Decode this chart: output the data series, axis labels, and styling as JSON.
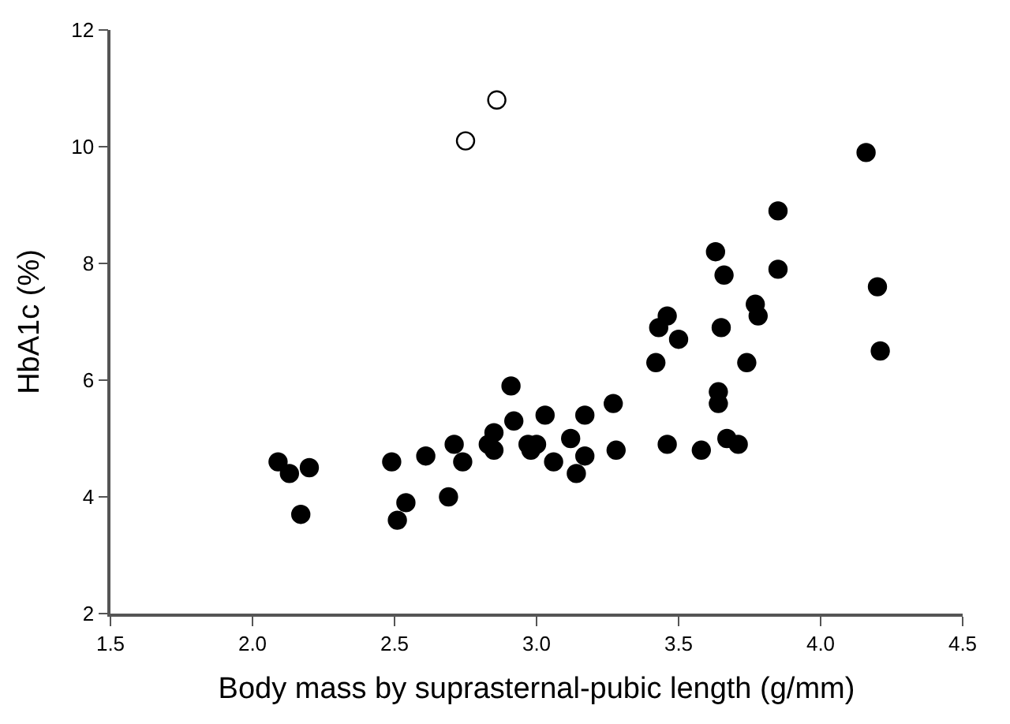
{
  "chart_data": {
    "type": "scatter",
    "xlabel": "Body mass by suprasternal-pubic length (g/mm)",
    "ylabel": "HbA1c (%)",
    "xlim": [
      1.5,
      4.5
    ],
    "xticks": [
      {
        "value": 1.5,
        "label": "1.5"
      },
      {
        "value": 2,
        "label": "2.0"
      },
      {
        "value": 2.5,
        "label": "2.5"
      },
      {
        "value": 3,
        "label": "3.0"
      },
      {
        "value": 3.5,
        "label": "3.5"
      },
      {
        "value": 4,
        "label": "4.0"
      },
      {
        "value": 4.5,
        "label": "4.5"
      }
    ],
    "ylim": [
      2,
      12
    ],
    "yticks": [
      2,
      4,
      6,
      8,
      10,
      12
    ],
    "marker": "circle",
    "series": [
      {
        "color": "#000000",
        "x": [
          2.09,
          2.13,
          2.17,
          2.2,
          2.49,
          2.51,
          2.54,
          2.61,
          2.69,
          2.71,
          2.74,
          2.83,
          2.85,
          2.85,
          2.91,
          2.92,
          2.97,
          2.98,
          3.0,
          3.03,
          3.06,
          3.12,
          3.14,
          3.17,
          3.17,
          3.27,
          3.28,
          3.42,
          3.43,
          3.46,
          3.46,
          3.5,
          3.58,
          3.63,
          3.64,
          3.64,
          3.65,
          3.66,
          3.67,
          3.71,
          3.74,
          3.77,
          3.78,
          3.85,
          3.85,
          4.16,
          4.2,
          4.21
        ],
        "values": [
          4.6,
          4.4,
          3.7,
          4.5,
          4.6,
          3.6,
          3.9,
          4.7,
          4.0,
          4.9,
          4.6,
          4.9,
          5.1,
          4.8,
          5.9,
          5.3,
          4.9,
          4.8,
          4.9,
          5.4,
          4.6,
          5.0,
          4.4,
          5.4,
          4.7,
          5.6,
          4.8,
          6.3,
          6.9,
          7.1,
          4.9,
          6.7,
          4.8,
          8.2,
          5.8,
          5.6,
          6.9,
          7.8,
          5.0,
          4.9,
          6.3,
          7.3,
          7.1,
          8.9,
          7.9,
          9.9,
          7.6,
          6.5
        ]
      },
      {
        "color": "#ffffff",
        "x": [
          2.75,
          2.86
        ],
        "values": [
          10.1,
          10.8
        ]
      }
    ]
  }
}
